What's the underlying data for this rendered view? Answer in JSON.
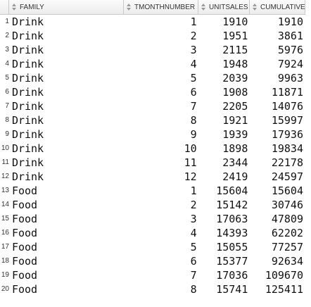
{
  "columns": [
    {
      "label": "FAMILY"
    },
    {
      "label": "TMONTHNUMBER"
    },
    {
      "label": "UNITSALES"
    },
    {
      "label": "CUMULATIVE"
    }
  ],
  "rows": [
    {
      "n": "1",
      "family": "Drink",
      "month": "1",
      "units": "1910",
      "cumulative": "1910"
    },
    {
      "n": "2",
      "family": "Drink",
      "month": "2",
      "units": "1951",
      "cumulative": "3861"
    },
    {
      "n": "3",
      "family": "Drink",
      "month": "3",
      "units": "2115",
      "cumulative": "5976"
    },
    {
      "n": "4",
      "family": "Drink",
      "month": "4",
      "units": "1948",
      "cumulative": "7924"
    },
    {
      "n": "5",
      "family": "Drink",
      "month": "5",
      "units": "2039",
      "cumulative": "9963"
    },
    {
      "n": "6",
      "family": "Drink",
      "month": "6",
      "units": "1908",
      "cumulative": "11871"
    },
    {
      "n": "7",
      "family": "Drink",
      "month": "7",
      "units": "2205",
      "cumulative": "14076"
    },
    {
      "n": "8",
      "family": "Drink",
      "month": "8",
      "units": "1921",
      "cumulative": "15997"
    },
    {
      "n": "9",
      "family": "Drink",
      "month": "9",
      "units": "1939",
      "cumulative": "17936"
    },
    {
      "n": "10",
      "family": "Drink",
      "month": "10",
      "units": "1898",
      "cumulative": "19834"
    },
    {
      "n": "11",
      "family": "Drink",
      "month": "11",
      "units": "2344",
      "cumulative": "22178"
    },
    {
      "n": "12",
      "family": "Drink",
      "month": "12",
      "units": "2419",
      "cumulative": "24597"
    },
    {
      "n": "13",
      "family": "Food",
      "month": "1",
      "units": "15604",
      "cumulative": "15604"
    },
    {
      "n": "14",
      "family": "Food",
      "month": "2",
      "units": "15142",
      "cumulative": "30746"
    },
    {
      "n": "15",
      "family": "Food",
      "month": "3",
      "units": "17063",
      "cumulative": "47809"
    },
    {
      "n": "16",
      "family": "Food",
      "month": "4",
      "units": "14393",
      "cumulative": "62202"
    },
    {
      "n": "17",
      "family": "Food",
      "month": "5",
      "units": "15055",
      "cumulative": "77257"
    },
    {
      "n": "18",
      "family": "Food",
      "month": "6",
      "units": "15377",
      "cumulative": "92634"
    },
    {
      "n": "19",
      "family": "Food",
      "month": "7",
      "units": "17036",
      "cumulative": "109670"
    },
    {
      "n": "20",
      "family": "Food",
      "month": "8",
      "units": "15741",
      "cumulative": "125411"
    }
  ]
}
